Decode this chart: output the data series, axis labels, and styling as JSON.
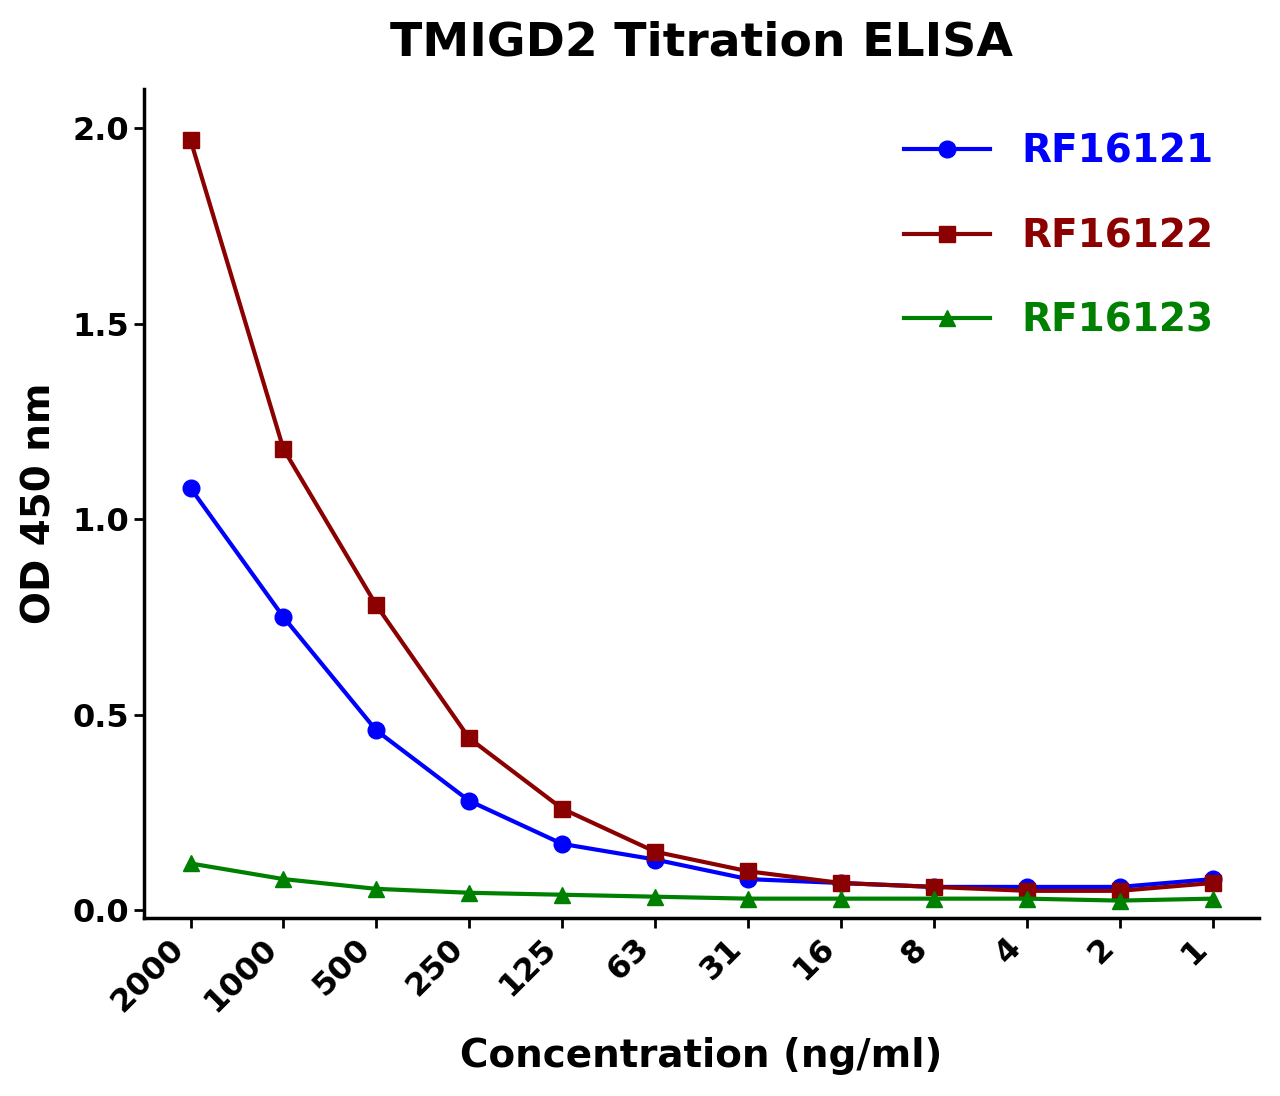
{
  "title": "TMIGD2 Titration ELISA",
  "xlabel": "Concentration (ng/ml)",
  "ylabel": "OD 450 nm",
  "x_labels": [
    "2000",
    "1000",
    "500",
    "250",
    "125",
    "63",
    "31",
    "16",
    "8",
    "4",
    "2",
    "1"
  ],
  "series": [
    {
      "name": "RF16121",
      "color": "#0000FF",
      "marker": "o",
      "values": [
        1.08,
        0.75,
        0.46,
        0.28,
        0.17,
        0.13,
        0.08,
        0.07,
        0.06,
        0.06,
        0.06,
        0.08
      ]
    },
    {
      "name": "RF16122",
      "color": "#8B0000",
      "marker": "s",
      "values": [
        1.97,
        1.18,
        0.78,
        0.44,
        0.26,
        0.15,
        0.1,
        0.07,
        0.06,
        0.05,
        0.05,
        0.07
      ]
    },
    {
      "name": "RF16123",
      "color": "#008000",
      "marker": "^",
      "values": [
        0.12,
        0.08,
        0.055,
        0.045,
        0.04,
        0.035,
        0.03,
        0.03,
        0.03,
        0.03,
        0.025,
        0.03
      ]
    }
  ],
  "ylim": [
    -0.02,
    2.1
  ],
  "yticks": [
    0.0,
    0.5,
    1.0,
    1.5,
    2.0
  ],
  "background_color": "#FEFFFE",
  "title_fontsize": 34,
  "axis_label_fontsize": 28,
  "tick_fontsize": 23,
  "legend_fontsize": 28,
  "linewidth": 3.0,
  "markersize": 12
}
